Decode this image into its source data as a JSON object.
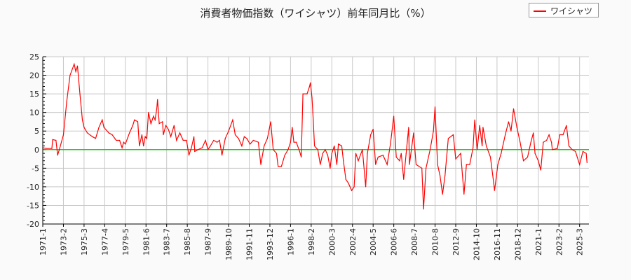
{
  "chart_data": {
    "type": "line",
    "title": "消費者物価指数（ワイシャツ）前年同月比（%）",
    "xlabel": "",
    "ylabel": "",
    "ylim": [
      -20,
      25
    ],
    "yticks": [
      -20,
      -15,
      -10,
      -5,
      0,
      5,
      10,
      15,
      20,
      25
    ],
    "xticks": [
      "1971-1",
      "1973-2",
      "1975-3",
      "1977-4",
      "1979-5",
      "1981-6",
      "1983-7",
      "1985-8",
      "1987-9",
      "1989-10",
      "1991-11",
      "1993-12",
      "1996-1",
      "1998-2",
      "2000-3",
      "2002-4",
      "2004-5",
      "2006-6",
      "2008-7",
      "2010-8",
      "2012-9",
      "2014-10",
      "2016-11",
      "2018-12",
      "2021-1",
      "2023-2",
      "2025-3"
    ],
    "grid": true,
    "legend_position": "top-right",
    "zero_line_color": "#00cc00",
    "series": [
      {
        "name": "ワイシャツ",
        "color": "#ff0000",
        "x": [
          "1971-1",
          "1971-6",
          "1971-12",
          "1972-1",
          "1972-5",
          "1972-7",
          "1972-9",
          "1973-2",
          "1973-6",
          "1973-10",
          "1974-3",
          "1974-5",
          "1974-7",
          "1974-10",
          "1975-1",
          "1975-3",
          "1975-7",
          "1976-1",
          "1976-5",
          "1976-9",
          "1977-1",
          "1977-3",
          "1977-9",
          "1978-1",
          "1978-6",
          "1978-10",
          "1979-1",
          "1979-3",
          "1979-5",
          "1979-10",
          "1980-2",
          "1980-4",
          "1980-8",
          "1980-10",
          "1981-1",
          "1981-3",
          "1981-5",
          "1981-7",
          "1981-9",
          "1981-12",
          "1982-3",
          "1982-5",
          "1982-7",
          "1982-8",
          "1982-10",
          "1983-2",
          "1983-3",
          "1983-6",
          "1983-9",
          "1983-12",
          "1984-4",
          "1984-7",
          "1984-11",
          "1985-3",
          "1985-7",
          "1985-10",
          "1986-1",
          "1986-4",
          "1986-5",
          "1986-9",
          "1987-2",
          "1987-6",
          "1987-9",
          "1987-12",
          "1988-4",
          "1988-8",
          "1988-11",
          "1989-2",
          "1989-6",
          "1989-10",
          "1990-3",
          "1990-6",
          "1990-10",
          "1991-2",
          "1991-5",
          "1991-8",
          "1991-12",
          "1992-4",
          "1992-10",
          "1993-1",
          "1993-5",
          "1993-9",
          "1994-1",
          "1994-4",
          "1994-8",
          "1994-10",
          "1995-2",
          "1995-6",
          "1995-10",
          "1996-1",
          "1996-3",
          "1996-5",
          "1996-8",
          "1996-12",
          "1997-2",
          "1997-4",
          "1997-9",
          "1997-12",
          "1998-1",
          "1998-3",
          "1998-4",
          "1998-6",
          "1998-10",
          "1999-1",
          "1999-4",
          "1999-7",
          "1999-10",
          "2000-1",
          "2000-3",
          "2000-6",
          "2000-9",
          "2000-11",
          "2001-3",
          "2001-5",
          "2001-8",
          "2001-11",
          "2002-3",
          "2002-6",
          "2002-8",
          "2002-11",
          "2003-4",
          "2003-8",
          "2003-10",
          "2004-2",
          "2004-5",
          "2004-8",
          "2004-11",
          "2005-5",
          "2005-10",
          "2006-2",
          "2006-6",
          "2006-9",
          "2007-1",
          "2007-3",
          "2007-6",
          "2007-9",
          "2007-12",
          "2008-1",
          "2008-6",
          "2008-9",
          "2009-4",
          "2009-6",
          "2009-9",
          "2010-2",
          "2010-6",
          "2010-8",
          "2010-11",
          "2011-2",
          "2011-5",
          "2011-8",
          "2011-12",
          "2012-6",
          "2012-9",
          "2013-3",
          "2013-7",
          "2013-10",
          "2014-2",
          "2014-6",
          "2014-8",
          "2014-11",
          "2015-2",
          "2015-5",
          "2015-6",
          "2015-10",
          "2016-3",
          "2016-7",
          "2016-8",
          "2016-12",
          "2017-4",
          "2017-9",
          "2018-1",
          "2018-4",
          "2018-7",
          "2018-11",
          "2019-3",
          "2019-7",
          "2019-12",
          "2020-4",
          "2020-7",
          "2020-9",
          "2021-1",
          "2021-4",
          "2021-7",
          "2021-11",
          "2022-2",
          "2022-5",
          "2022-6",
          "2022-12",
          "2023-3",
          "2023-7",
          "2023-11",
          "2024-2",
          "2024-6",
          "2024-10",
          "2025-3",
          "2025-7",
          "2025-11",
          "2025-12"
        ],
        "values": [
          0.5,
          0.3,
          0.3,
          2.7,
          2.5,
          -1.5,
          0,
          4,
          13,
          20,
          23,
          21,
          22.5,
          15,
          8,
          6,
          4.5,
          3.5,
          3,
          6,
          8,
          6,
          4.5,
          4,
          2.5,
          2.5,
          0.5,
          2,
          1.5,
          4.5,
          6.5,
          8,
          7.5,
          1,
          4,
          1,
          3.5,
          3,
          10,
          7,
          9,
          8,
          11,
          13.5,
          7,
          7.5,
          4,
          6.5,
          5.5,
          3.5,
          6.5,
          2.5,
          4.5,
          2.5,
          2.5,
          -1.5,
          0.5,
          3.5,
          -0.5,
          0,
          0.5,
          2.5,
          0,
          1,
          2.5,
          2,
          2.5,
          -1.5,
          3,
          5,
          8,
          4,
          3,
          1,
          3.5,
          3,
          1.5,
          2.5,
          2,
          -4,
          1,
          3,
          7.5,
          0,
          -1,
          -4.5,
          -4.5,
          -1.5,
          0,
          2,
          6,
          2,
          2,
          -0.5,
          -2,
          15,
          15,
          17,
          18,
          14,
          10,
          1,
          0,
          -4,
          -1,
          0,
          -1.5,
          -5,
          -1,
          1,
          -4,
          1.5,
          1,
          -3,
          -8,
          -9,
          -11,
          -10,
          -1,
          -3,
          0,
          -10,
          -1,
          4,
          5.5,
          -4,
          -2,
          -1.5,
          -4,
          1.5,
          9,
          -2,
          -3,
          -1,
          -8,
          -1,
          6,
          -4,
          4.5,
          -4,
          -5,
          -16,
          -5,
          0,
          5,
          11.5,
          -4,
          -7,
          -12,
          -7,
          3,
          4,
          -2.5,
          -1,
          -12,
          -4,
          -4,
          0.5,
          8,
          0,
          6.5,
          1,
          6,
          1,
          -2,
          -9,
          -11,
          -4,
          -1,
          4,
          7.5,
          5,
          11,
          6,
          2,
          -3,
          -2,
          2,
          4.5,
          -1,
          -3,
          -5.5,
          2,
          2.5,
          4,
          2,
          0,
          0.3,
          4,
          4,
          6.5,
          1,
          0,
          -0.5,
          -4,
          -0.5,
          -1,
          -3.5
        ]
      }
    ]
  }
}
